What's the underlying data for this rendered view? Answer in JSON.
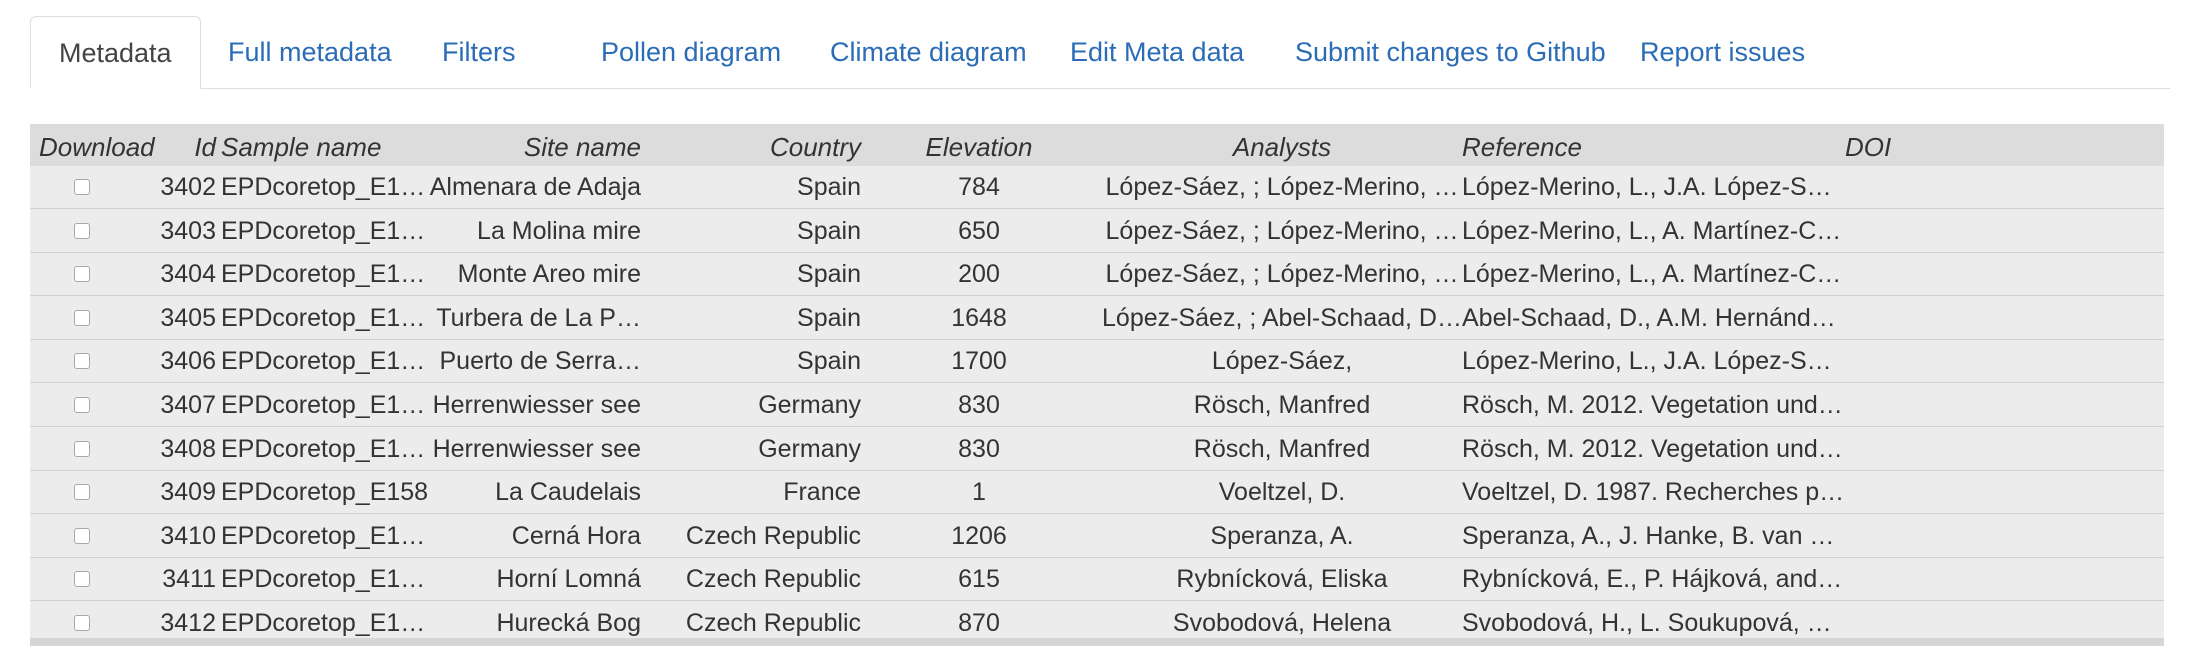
{
  "tabs": [
    {
      "label": "Metadata",
      "active": true
    },
    {
      "label": "Full metadata"
    },
    {
      "label": "Filters"
    },
    {
      "label": "Pollen diagram"
    },
    {
      "label": "Climate diagram"
    },
    {
      "label": "Edit Meta data"
    },
    {
      "label": "Submit changes to Github"
    },
    {
      "label": "Report issues"
    }
  ],
  "table": {
    "headers": {
      "download": "Download",
      "id": "Id",
      "sample_name": "Sample name",
      "site_name": "Site name",
      "country": "Country",
      "elevation": "Elevation",
      "analysts": "Analysts",
      "reference": "Reference",
      "doi": "DOI"
    },
    "rows": [
      {
        "id": "3402",
        "sample": "EPDcoretop_E1…",
        "site": "Almenara de Adaja",
        "country": "Spain",
        "elevation": "784",
        "analysts": "López-Sáez, ; López-Merino, …",
        "reference": "López-Merino, L., J.A. López-S…",
        "doi": ""
      },
      {
        "id": "3403",
        "sample": "EPDcoretop_E1…",
        "site": "La Molina mire",
        "country": "Spain",
        "elevation": "650",
        "analysts": "López-Sáez, ; López-Merino, …",
        "reference": "López-Merino, L., A. Martínez-C…",
        "doi": ""
      },
      {
        "id": "3404",
        "sample": "EPDcoretop_E1…",
        "site": "Monte Areo mire",
        "country": "Spain",
        "elevation": "200",
        "analysts": "López-Sáez, ; López-Merino, …",
        "reference": "López-Merino, L., A. Martínez-C…",
        "doi": ""
      },
      {
        "id": "3405",
        "sample": "EPDcoretop_E1…",
        "site": "Turbera de La P…",
        "country": "Spain",
        "elevation": "1648",
        "analysts": "López-Sáez, ; Abel-Schaad, D…",
        "reference": "Abel-Schaad, D., A.M. Hernánd…",
        "doi": ""
      },
      {
        "id": "3406",
        "sample": "EPDcoretop_E1…",
        "site": "Puerto de Serra…",
        "country": "Spain",
        "elevation": "1700",
        "analysts": "López-Sáez,",
        "reference": "López-Merino, L., J.A. López-S…",
        "doi": ""
      },
      {
        "id": "3407",
        "sample": "EPDcoretop_E1…",
        "site": "Herrenwiesser see",
        "country": "Germany",
        "elevation": "830",
        "analysts": "Rösch, Manfred",
        "reference": "Rösch, M. 2012. Vegetation und…",
        "doi": ""
      },
      {
        "id": "3408",
        "sample": "EPDcoretop_E1…",
        "site": "Herrenwiesser see",
        "country": "Germany",
        "elevation": "830",
        "analysts": "Rösch, Manfred",
        "reference": "Rösch, M. 2012. Vegetation und…",
        "doi": ""
      },
      {
        "id": "3409",
        "sample": "EPDcoretop_E158",
        "site": "La Caudelais",
        "country": "France",
        "elevation": "1",
        "analysts": "Voeltzel, D.",
        "reference": "Voeltzel, D. 1987. Recherches p…",
        "doi": ""
      },
      {
        "id": "3410",
        "sample": "EPDcoretop_E1…",
        "site": "Cerná Hora",
        "country": "Czech Republic",
        "elevation": "1206",
        "analysts": "Speranza, A.",
        "reference": "Speranza, A., J. Hanke, B. van …",
        "doi": ""
      },
      {
        "id": "3411",
        "sample": "EPDcoretop_E1…",
        "site": "Horní Lomná",
        "country": "Czech Republic",
        "elevation": "615",
        "analysts": "Rybnícková, Eliska",
        "reference": "Rybnícková, E., P. Hájková, and…",
        "doi": ""
      },
      {
        "id": "3412",
        "sample": "EPDcoretop_E1…",
        "site": "Hurecká Bog",
        "country": "Czech Republic",
        "elevation": "870",
        "analysts": "Svobodová, Helena",
        "reference": "Svobodová, H., L. Soukupová, …",
        "doi": ""
      }
    ]
  }
}
